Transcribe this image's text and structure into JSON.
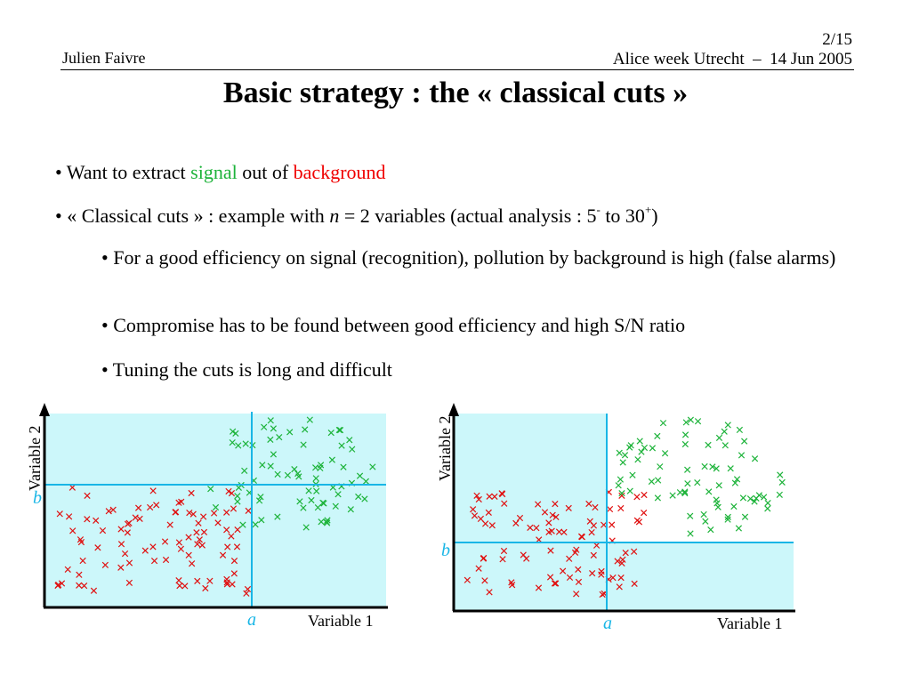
{
  "header": {
    "author": "Julien Faivre",
    "page": "2/15",
    "venue": "Alice week Utrecht  –  14 Jun 2005"
  },
  "title": "Basic strategy : the « classical cuts »",
  "bullets": {
    "b1": {
      "prefix": "• Want to extract ",
      "signal": "signal",
      "middle": " out of ",
      "background": "background"
    },
    "b2": {
      "prefix": "• « Classical cuts » : example with ",
      "n": "n",
      "mid": " = 2 variables (actual analysis : 5",
      "sup1": "-",
      "mid2": " to 30",
      "sup2": "+",
      "end": ")"
    },
    "b3": "• For a good efficiency on signal (recognition), pollution by background is high (false alarms)",
    "b4": "• Compromise has to be found between good efficiency and high S/N ratio",
    "b5": "• Tuning the cuts is long and difficult"
  },
  "plots": {
    "left": {
      "xlabel": "Variable 1",
      "ylabel": "Variable 2",
      "cut_x_label": "a",
      "cut_y_label": "b"
    },
    "right": {
      "xlabel": "Variable 1",
      "ylabel": "Variable 2",
      "cut_x_label": "a",
      "cut_y_label": "b"
    },
    "colors": {
      "signal": "#1db33a",
      "background": "#e01010",
      "region": "#ccf7fa",
      "cut": "#19b6e6"
    }
  }
}
